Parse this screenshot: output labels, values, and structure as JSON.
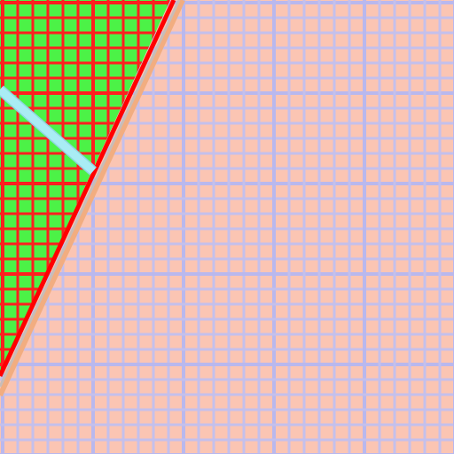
{
  "colors": {
    "background_fill": "#fbc5b3",
    "background_grid": "#c4c0ec",
    "background_grid_major": "#b9b8ee",
    "region_fill": "#4cf247",
    "region_grid": "#ff1f1f",
    "region_border": "#ff0000",
    "border_shadow_outer": "#f2ad80",
    "border_shadow_inner": "#c8bdb8",
    "diagonal_line": "#a9ecf4",
    "diagonal_line_edge": "#8ed7e0"
  },
  "regions": {
    "background": "pink-grid-area",
    "highlighted": "green-grid-region",
    "ray": "cyan-line"
  }
}
